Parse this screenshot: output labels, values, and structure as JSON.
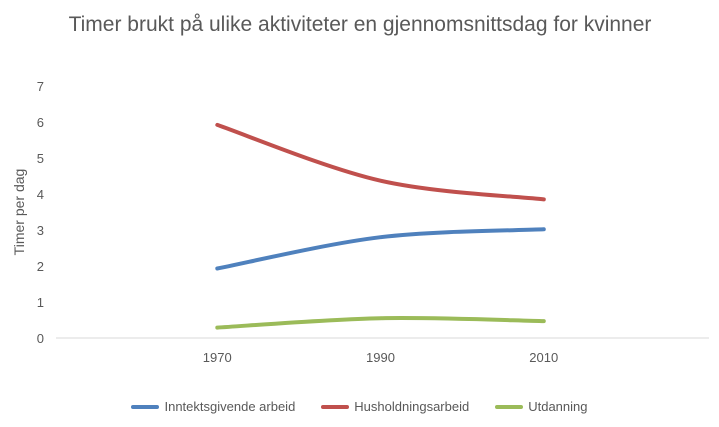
{
  "chart_data": {
    "type": "line",
    "title": "Timer brukt på ulike aktiviteter en gjennomsnittsdag for kvinner",
    "xlabel": "",
    "ylabel": "Timer per dag",
    "categories": [
      "1970",
      "1990",
      "2010"
    ],
    "ylim": [
      0,
      7
    ],
    "yticks": [
      0,
      1,
      2,
      3,
      4,
      5,
      6,
      7
    ],
    "grid": false,
    "smooth": true,
    "legend_position": "bottom",
    "series": [
      {
        "name": "Inntektsgivende arbeid",
        "values": [
          1.93,
          2.8,
          3.02
        ],
        "color": "#4f81bd"
      },
      {
        "name": "Husholdningsarbeid",
        "values": [
          5.92,
          4.37,
          3.85
        ],
        "color": "#c0504d"
      },
      {
        "name": "Utdanning",
        "values": [
          0.29,
          0.55,
          0.47
        ],
        "color": "#9bbb59"
      }
    ]
  }
}
